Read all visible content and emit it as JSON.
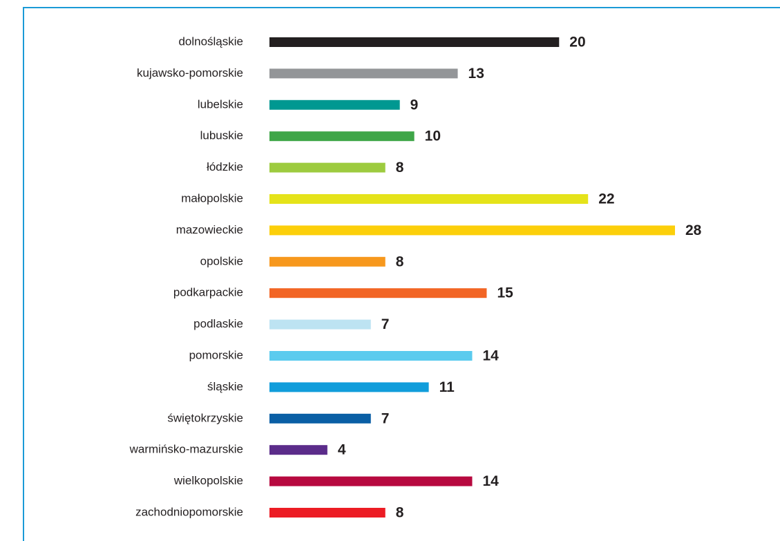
{
  "chart_data": {
    "type": "barh",
    "categories": [
      "dolnośląskie",
      "kujawsko-pomorskie",
      "lubelskie",
      "lubuskie",
      "łódzkie",
      "małopolskie",
      "mazowieckie",
      "opolskie",
      "podkarpackie",
      "podlaskie",
      "pomorskie",
      "śląskie",
      "świętokrzyskie",
      "warmińsko-mazurskie",
      "wielkopolskie",
      "zachodniopomorskie"
    ],
    "values": [
      20,
      13,
      9,
      10,
      8,
      22,
      28,
      8,
      15,
      7,
      14,
      11,
      7,
      4,
      14,
      8
    ],
    "colors": [
      "#231f20",
      "#939598",
      "#009891",
      "#3fa648",
      "#9dcb3f",
      "#e5e31a",
      "#fccf0a",
      "#f7981d",
      "#f26525",
      "#bde3f2",
      "#5bcbee",
      "#119ddb",
      "#0a5fa5",
      "#5b2c8a",
      "#b7093f",
      "#ec1c24"
    ]
  }
}
